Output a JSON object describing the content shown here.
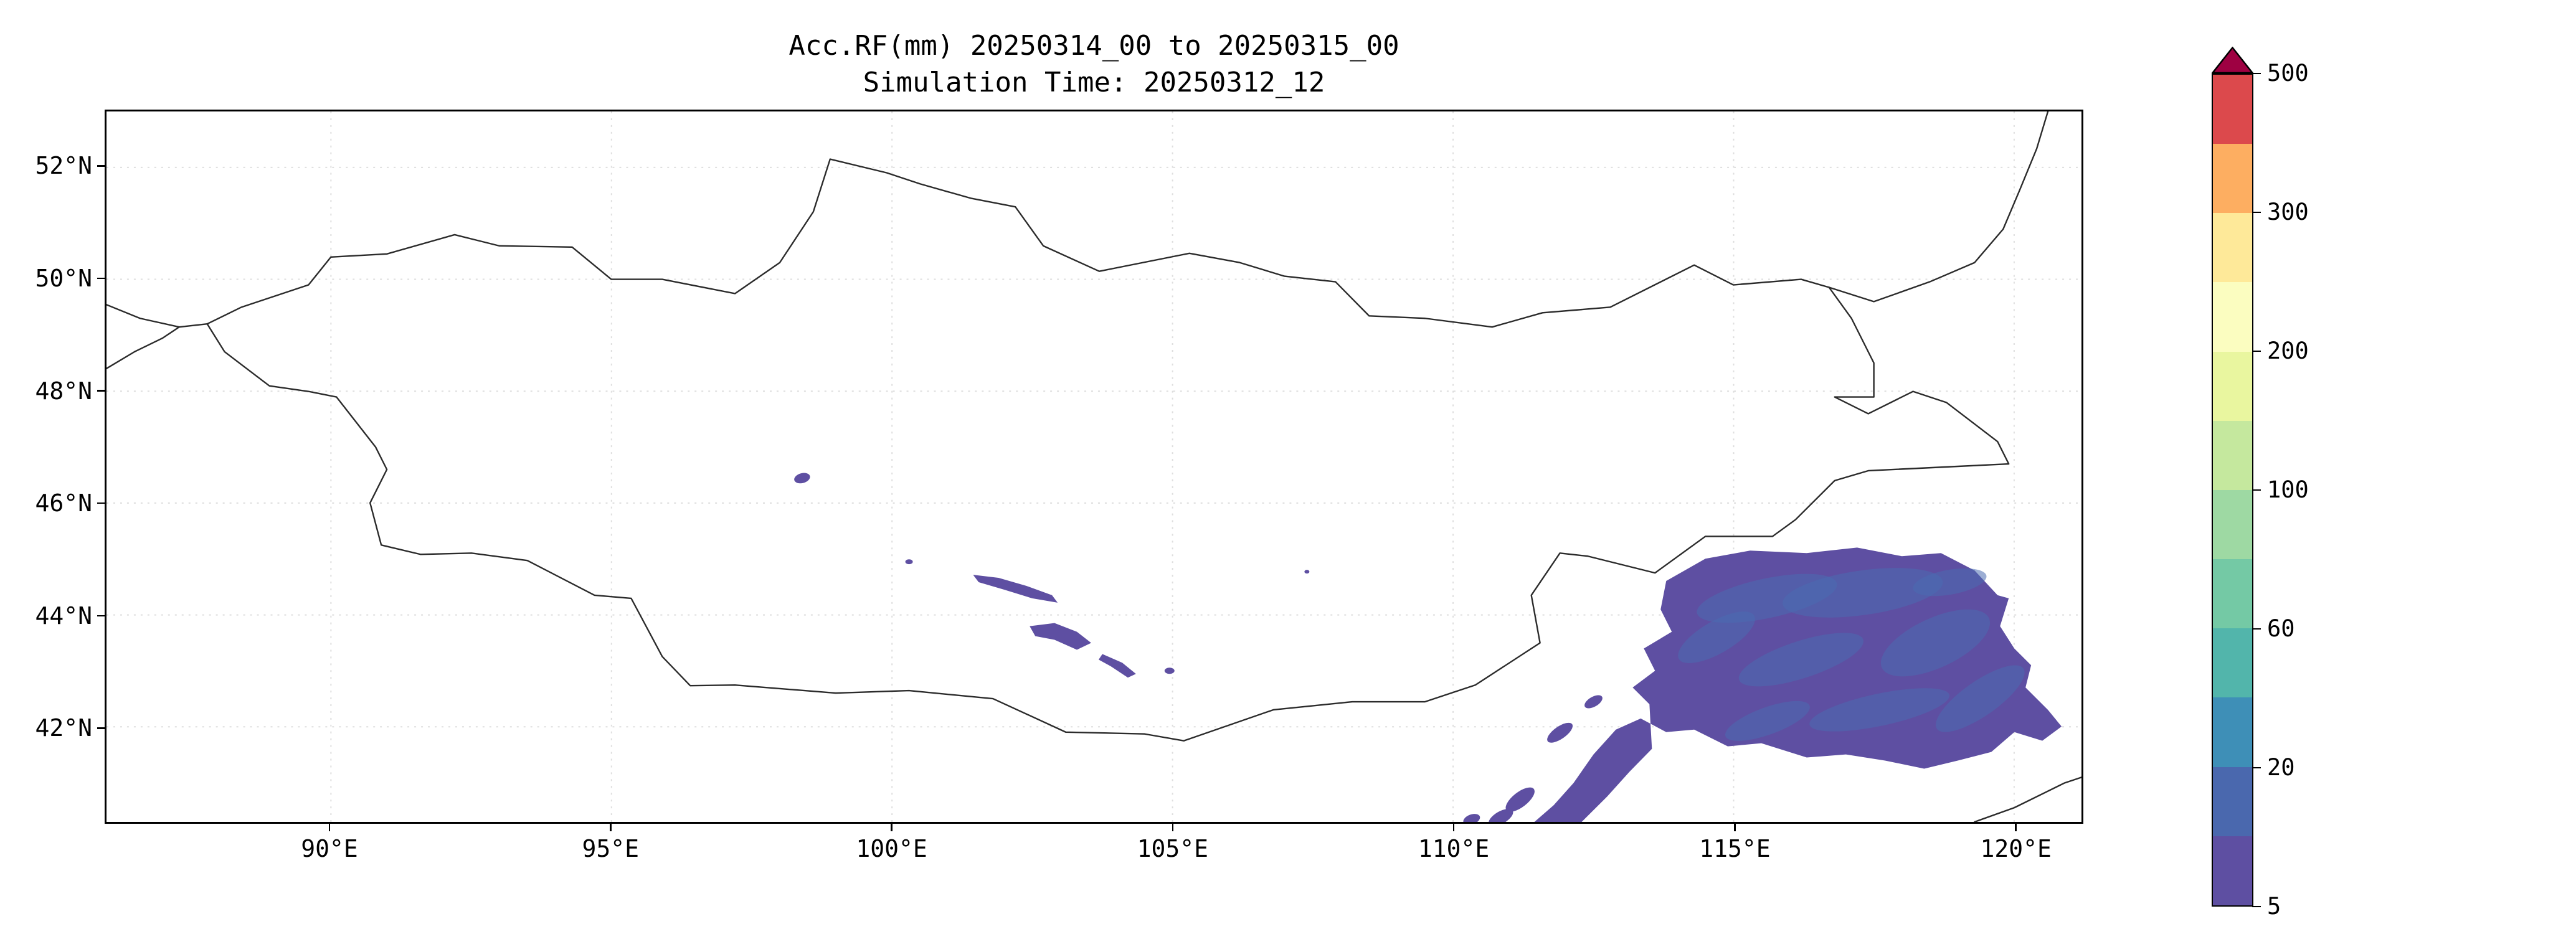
{
  "title": {
    "line1": "Acc.RF(mm) 20250314_00 to 20250315_00",
    "line2": "Simulation Time: 20250312_12"
  },
  "colors": {
    "precip_low": "#5e4fa2",
    "precip_mid": "#4a6cb0",
    "border": "#2b2b2b",
    "grid": "#dedede"
  },
  "axes": {
    "x_ticks": [
      {
        "lon": 90,
        "label": "90°E"
      },
      {
        "lon": 95,
        "label": "95°E"
      },
      {
        "lon": 100,
        "label": "100°E"
      },
      {
        "lon": 105,
        "label": "105°E"
      },
      {
        "lon": 110,
        "label": "110°E"
      },
      {
        "lon": 115,
        "label": "115°E"
      },
      {
        "lon": 120,
        "label": "120°E"
      }
    ],
    "y_ticks": [
      {
        "lat": 52,
        "label": "52°N"
      },
      {
        "lat": 50,
        "label": "50°N"
      },
      {
        "lat": 48,
        "label": "48°N"
      },
      {
        "lat": 46,
        "label": "46°N"
      },
      {
        "lat": 44,
        "label": "44°N"
      },
      {
        "lat": 42,
        "label": "42°N"
      }
    ]
  },
  "colorbar": {
    "tick_labels": [
      "500",
      "300",
      "200",
      "100",
      "60",
      "20",
      "5"
    ],
    "band_colors": [
      "#5e4fa2",
      "#4a68ae",
      "#3e8fb7",
      "#52b5ab",
      "#74c9a5",
      "#9ed9a3",
      "#c5e89e",
      "#e9f69f",
      "#fbfdc0",
      "#fee999",
      "#fdae61",
      "#dc494c"
    ],
    "over_color": "#9e0142"
  },
  "chart_data": {
    "type": "heatmap",
    "subtype": "filled-contour precipitation map",
    "title": "Acc.RF(mm) 20250314_00 to 20250315_00",
    "subtitle": "Simulation Time: 20250312_12",
    "variable": "Accumulated rainfall (mm)",
    "valid_period_start": "20250314_00",
    "valid_period_end": "20250315_00",
    "simulation_time": "20250312_12",
    "extent": {
      "lon_min": 86.0,
      "lon_max": 121.2,
      "lat_min": 40.3,
      "lat_max": 53.0
    },
    "x_tick_values_deg_east": [
      90,
      95,
      100,
      105,
      110,
      115,
      120
    ],
    "y_tick_values_deg_north": [
      52,
      50,
      48,
      46,
      44,
      42
    ],
    "colorbar_labeled_levels_mm": [
      5,
      20,
      60,
      100,
      200,
      300,
      500
    ],
    "colorbar_extend": "max",
    "colorbar_position": "right",
    "grid": true,
    "basemap": "country borders (Mongolia outline, Russia-China border northeast, borders near west edge, Bohai coastline southeast corner)",
    "precip_regions": [
      {
        "desc": "Large light-rain area over southeast of domain (NE China / Inner Mongolia), mottled 5-20 mm",
        "lon_range": [
          111.0,
          120.9
        ],
        "lat_range": [
          40.3,
          45.2
        ],
        "value_band_mm": "5-20"
      },
      {
        "desc": "Narrow SW-NE band of light rain over central-south Mongolia",
        "lon_range": [
          101.4,
          104.4
        ],
        "lat_range": [
          42.9,
          44.8
        ],
        "value_band_mm": "5-10"
      },
      {
        "desc": "Small isolated spot",
        "lon_range": [
          98.3,
          98.5
        ],
        "lat_range": [
          46.4,
          46.5
        ],
        "value_band_mm": "5-10"
      },
      {
        "desc": "Tiny speck",
        "lon_range": [
          107.3,
          107.5
        ],
        "lat_range": [
          44.7,
          44.9
        ],
        "value_band_mm": "5-10"
      }
    ]
  }
}
